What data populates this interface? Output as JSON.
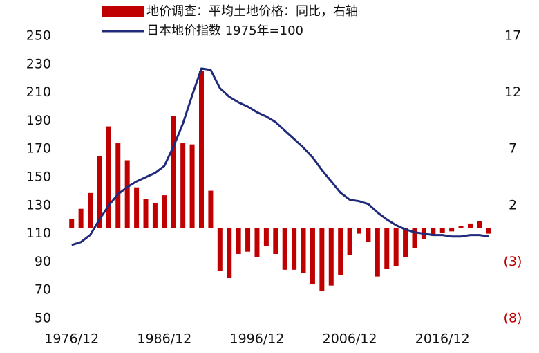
{
  "chart_data": {
    "type": "bar",
    "categories": [
      "1976/12",
      null,
      null,
      null,
      null,
      null,
      null,
      null,
      null,
      null,
      "1986/12",
      null,
      null,
      null,
      null,
      null,
      null,
      null,
      null,
      null,
      "1996/12",
      null,
      null,
      null,
      null,
      null,
      null,
      null,
      null,
      null,
      "2006/12",
      null,
      null,
      null,
      null,
      null,
      null,
      null,
      null,
      null,
      "2016/12",
      null,
      null,
      null,
      null,
      null
    ],
    "series": [
      {
        "name": "地价调查：平均土地价格：同比，右轴",
        "color": "#c00000",
        "axis": "y2",
        "values": [
          0.8,
          1.7,
          3.1,
          6.4,
          9.0,
          7.5,
          6.0,
          3.6,
          2.6,
          2.2,
          2.9,
          9.9,
          7.5,
          7.4,
          13.9,
          3.3,
          -3.8,
          -4.4,
          -2.3,
          -2.1,
          -2.6,
          -1.6,
          -2.3,
          -3.7,
          -3.7,
          -4.0,
          -5.0,
          -5.6,
          -5.1,
          -4.2,
          -2.4,
          -0.5,
          -1.2,
          -4.3,
          -3.6,
          -3.4,
          -2.6,
          -1.8,
          -1.0,
          -0.7,
          -0.4,
          -0.3,
          0.2,
          0.4,
          0.6,
          -0.5
        ]
      },
      {
        "name": "日本地价指数 1975年=100",
        "color": "#1f2a7a",
        "type": "line",
        "values": [
          102,
          104,
          109,
          120,
          130,
          138,
          143,
          147,
          150,
          153,
          158,
          172,
          188,
          208,
          227,
          226,
          213,
          207,
          203,
          200,
          196,
          193,
          189,
          183,
          177,
          171,
          164,
          155,
          147,
          139,
          134,
          133,
          131,
          125,
          120,
          116,
          113,
          111,
          110,
          109,
          109,
          108,
          108,
          109,
          109,
          108
        ]
      }
    ],
    "ylim": [
      50,
      250
    ],
    "yticks": [
      50,
      70,
      90,
      110,
      130,
      150,
      170,
      190,
      210,
      230,
      250
    ],
    "y2lim": [
      -8,
      17
    ],
    "y2ticks": [
      {
        "value": -8,
        "label": "(8)"
      },
      {
        "value": -3,
        "label": "(3)"
      },
      2,
      7,
      12,
      17
    ]
  }
}
